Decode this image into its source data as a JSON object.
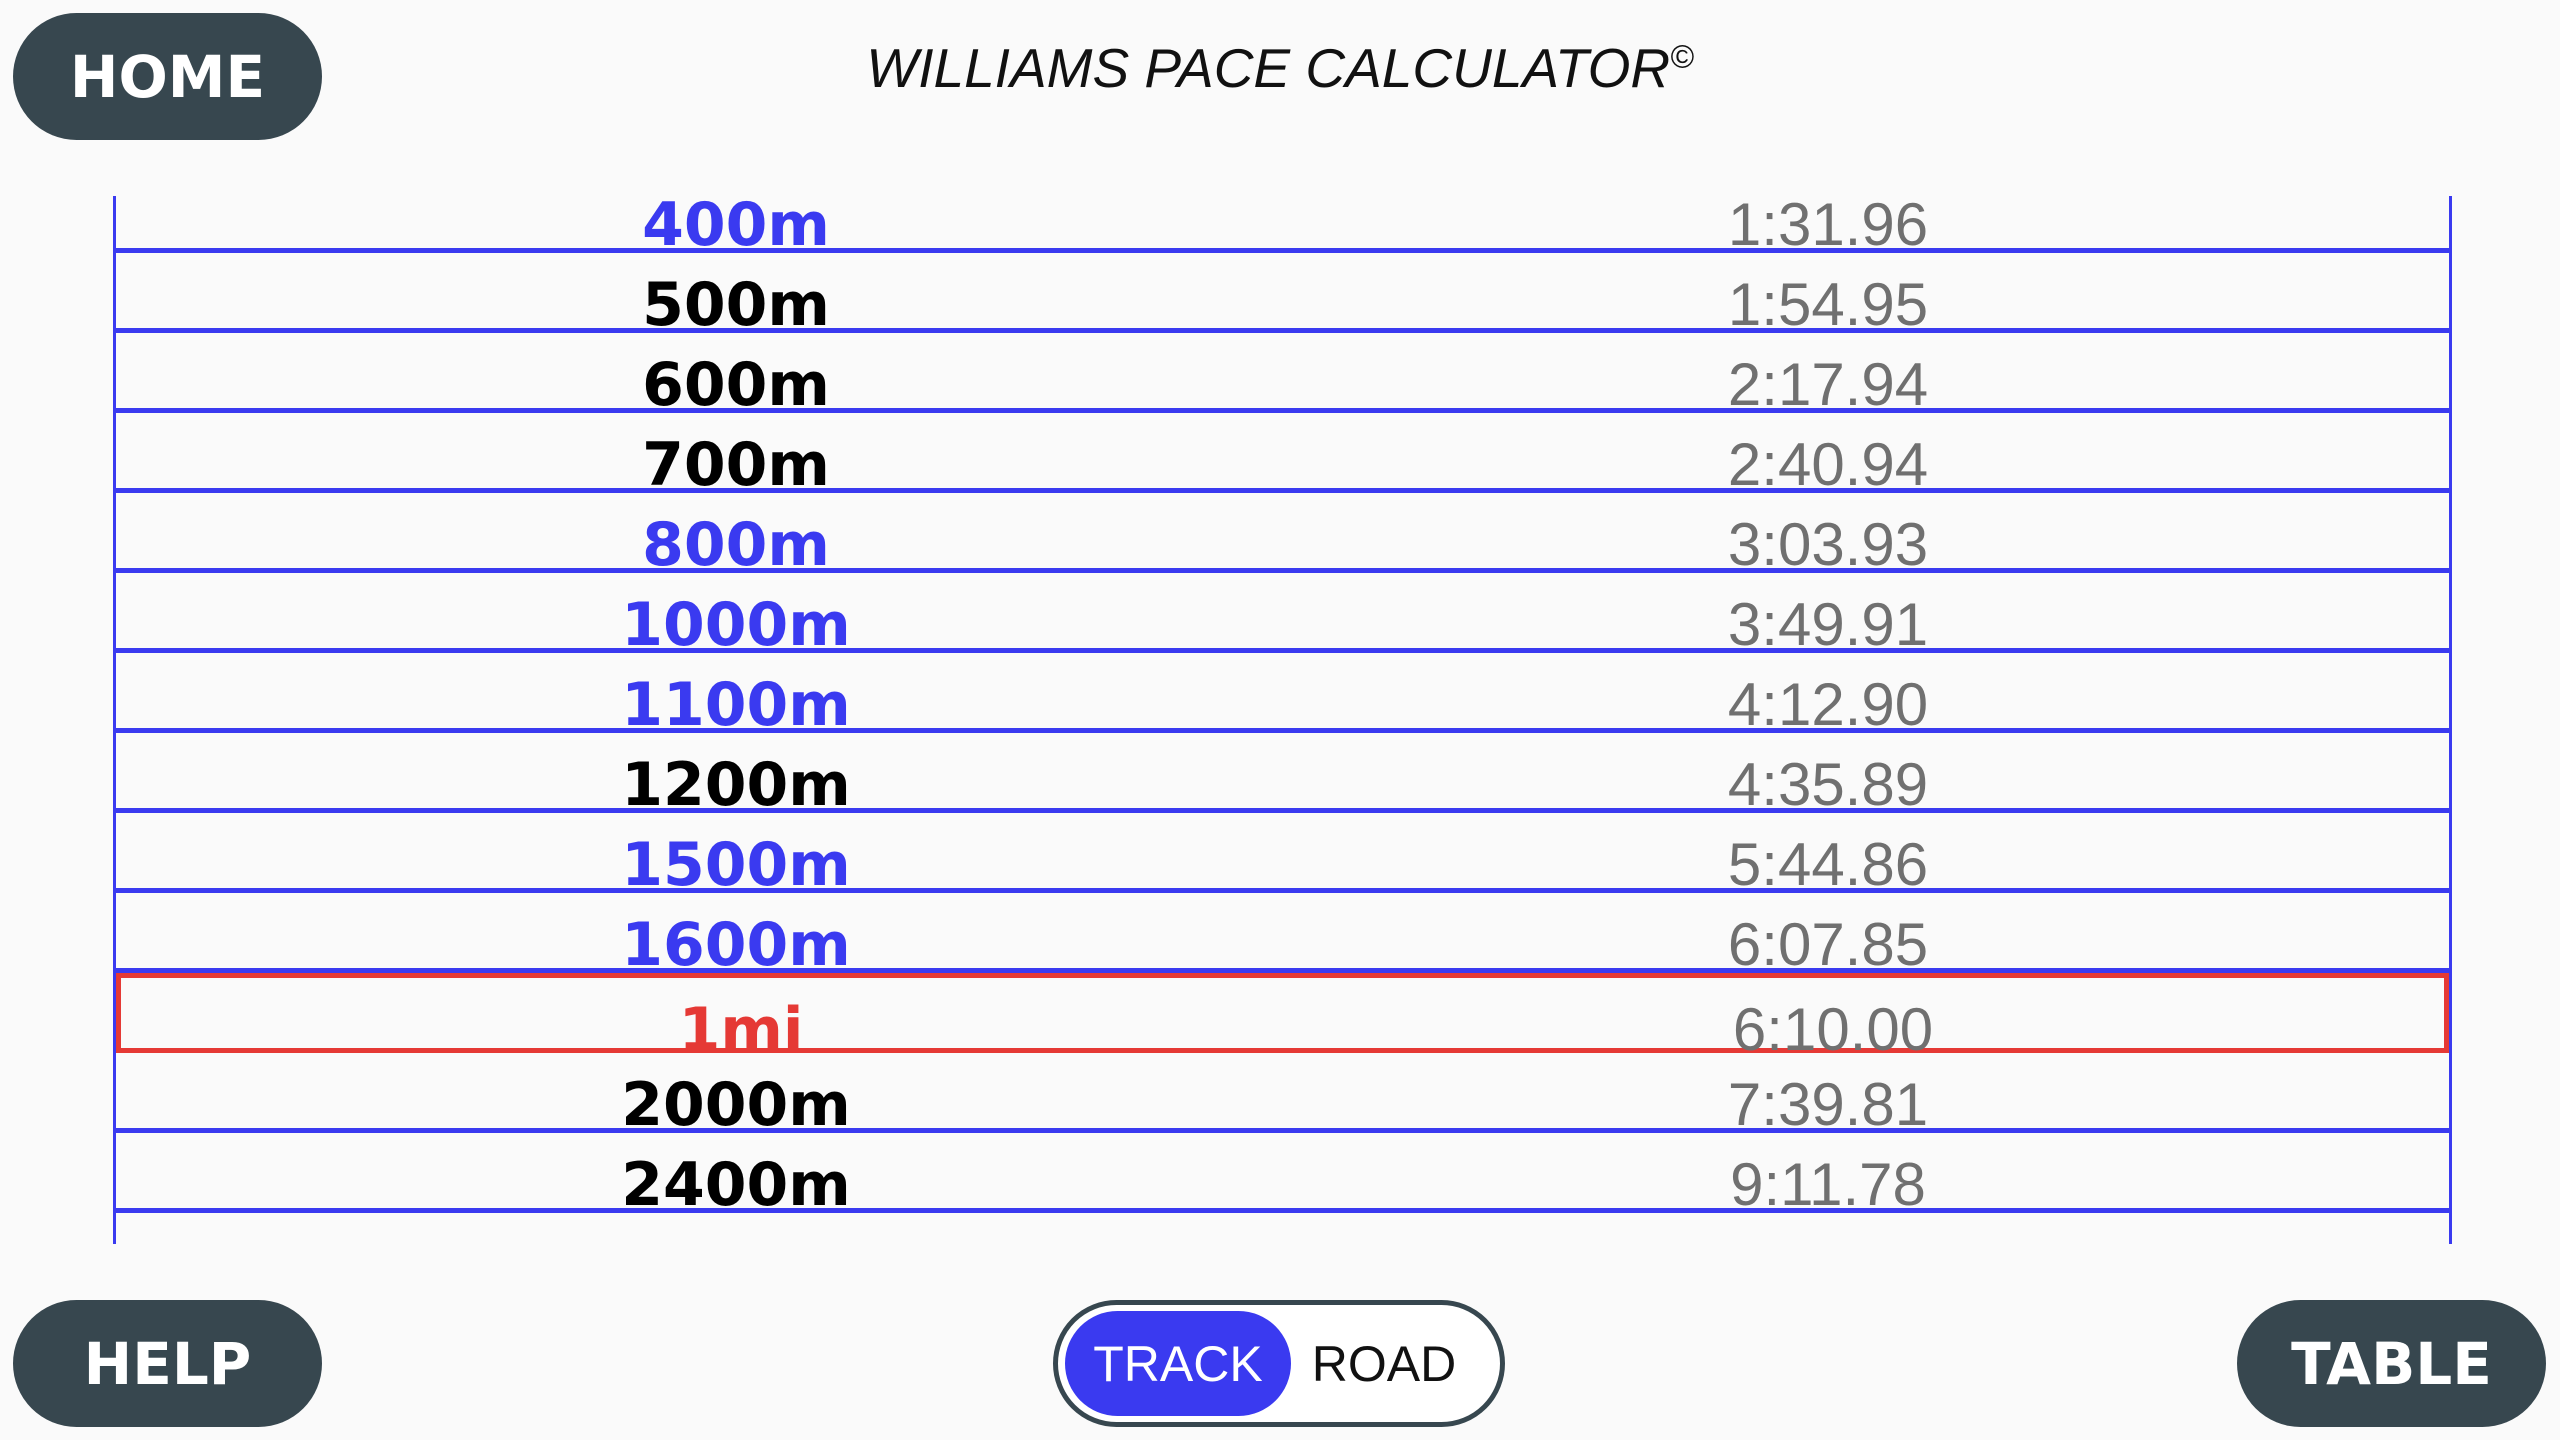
{
  "header": {
    "home": "HOME",
    "title": "WILLIAMS PACE CALCULATOR",
    "title_mark": "©"
  },
  "table": {
    "rows": [
      {
        "distance": "400m",
        "time": "1:31.96",
        "color": "#3a3af0"
      },
      {
        "distance": "500m",
        "time": "1:54.95",
        "color": "#000000"
      },
      {
        "distance": "600m",
        "time": "2:17.94",
        "color": "#000000"
      },
      {
        "distance": "700m",
        "time": "2:40.94",
        "color": "#000000"
      },
      {
        "distance": "800m",
        "time": "3:03.93",
        "color": "#3a3af0"
      },
      {
        "distance": "1000m",
        "time": "3:49.91",
        "color": "#3a3af0"
      },
      {
        "distance": "1100m",
        "time": "4:12.90",
        "color": "#3a3af0"
      },
      {
        "distance": "1200m",
        "time": "4:35.89",
        "color": "#000000"
      },
      {
        "distance": "1500m",
        "time": "5:44.86",
        "color": "#3a3af0"
      },
      {
        "distance": "1600m",
        "time": "6:07.85",
        "color": "#3a3af0"
      },
      {
        "distance": "1mi",
        "time": "6:10.00",
        "color": "#e53935",
        "highlighted": true
      },
      {
        "distance": "2000m",
        "time": "7:39.81",
        "color": "#000000"
      },
      {
        "distance": "2400m",
        "time": "9:11.78",
        "color": "#000000"
      }
    ]
  },
  "footer": {
    "help": "HELP",
    "track": "TRACK",
    "road": "ROAD",
    "table": "TABLE"
  }
}
